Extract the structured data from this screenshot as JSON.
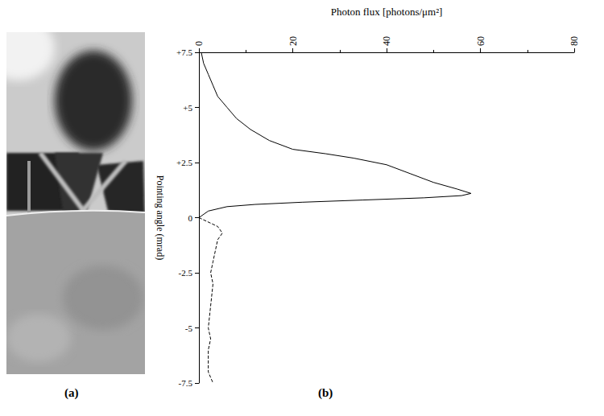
{
  "photo": {
    "label": "(a)"
  },
  "chart_data": {
    "type": "line",
    "label": "(b)",
    "x_label": "Photon flux [photons/μm²]",
    "y_label": "Pointing angle (mrad)",
    "xlim": [
      0,
      80
    ],
    "xticks": [
      0,
      20,
      40,
      60,
      80
    ],
    "ylim": [
      -7.5,
      7.5
    ],
    "yticks": [
      {
        "value": 7.5,
        "label": "+7.5"
      },
      {
        "value": 5,
        "label": "+5"
      },
      {
        "value": 2.5,
        "label": "+2.5"
      },
      0,
      -2.5,
      -5,
      -7.5
    ],
    "grid": false,
    "series": [
      {
        "line_style": "solid",
        "color": "#000000",
        "x": [
          0,
          2,
          6,
          12,
          22,
          35,
          48,
          56,
          58,
          55,
          50,
          45,
          40,
          33,
          27,
          20,
          15,
          11,
          8,
          6,
          4,
          3,
          2,
          1,
          0.5
        ],
        "y": [
          0,
          0.3,
          0.5,
          0.6,
          0.7,
          0.8,
          0.9,
          1.0,
          1.1,
          1.3,
          1.6,
          2.0,
          2.4,
          2.7,
          2.9,
          3.1,
          3.5,
          4.0,
          4.5,
          5.0,
          5.5,
          6.0,
          6.5,
          7.0,
          7.5
        ]
      },
      {
        "line_style": "dashed",
        "color": "#000000",
        "x": [
          0,
          4,
          5,
          4,
          3.5,
          3,
          2.5,
          3,
          2.5,
          2,
          2.5,
          2,
          2,
          3
        ],
        "y": [
          0,
          -0.4,
          -0.7,
          -1,
          -1.5,
          -2,
          -2.5,
          -3,
          -4,
          -5,
          -5.5,
          -6,
          -7,
          -7.5
        ]
      }
    ]
  }
}
